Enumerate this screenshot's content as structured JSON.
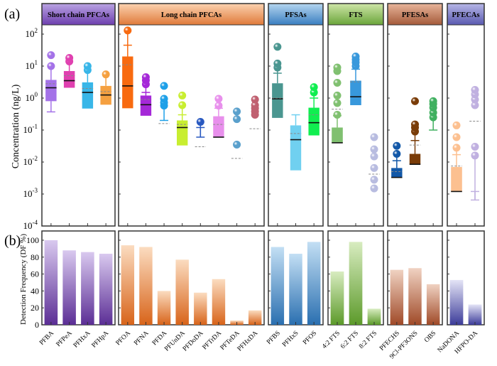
{
  "panel_labels": {
    "a": "(a)",
    "b": "(b)"
  },
  "chart_data": [
    {
      "type": "box",
      "panel": "(a)",
      "ylabel": "Concentration (ng/L)",
      "yscale": "log",
      "ylim": [
        0.0001,
        200
      ],
      "yticks": [
        {
          "value": 100,
          "base": "10",
          "exp": "2"
        },
        {
          "value": 10,
          "base": "10",
          "exp": "1"
        },
        {
          "value": 1,
          "base": "10",
          "exp": "0"
        },
        {
          "value": 0.1,
          "base": "10",
          "exp": "-1"
        },
        {
          "value": 0.01,
          "base": "10",
          "exp": "-2"
        },
        {
          "value": 0.001,
          "base": "10",
          "exp": "-3"
        },
        {
          "value": 0.0001,
          "base": "10",
          "exp": "-4"
        }
      ],
      "groups": [
        {
          "name": "Short chain PFCAs",
          "header_color": [
            "#b9a3e3",
            "#6d3fae"
          ],
          "compounds": [
            {
              "name": "PFBA",
              "color": "#a472e8",
              "q1": 0.8,
              "median": 2.1,
              "q3": 3.7,
              "mean": 2.8,
              "whisker_low": 0.37,
              "whisker_high": null,
              "outliers": [
                10,
                22
              ]
            },
            {
              "name": "PFPeA",
              "color": "#e040b0",
              "q1": 2.1,
              "median": 3.5,
              "q3": 7.0,
              "mean": 5.0,
              "whisker_low": null,
              "whisker_high": null,
              "outliers": [
                14,
                18
              ]
            },
            {
              "name": "PFHxA",
              "color": "#38b6e8",
              "q1": 0.47,
              "median": 1.5,
              "q3": 3.1,
              "mean": 2.0,
              "whisker_low": null,
              "whisker_high": null,
              "outliers": [
                7.5,
                10
              ]
            },
            {
              "name": "PFHpA",
              "color": "#f5a040",
              "q1": 0.62,
              "median": 1.25,
              "q3": 2.4,
              "mean": 1.6,
              "whisker_low": null,
              "whisker_high": null,
              "outliers": [
                5.5
              ]
            }
          ]
        },
        {
          "name": "Long chain PFCAs",
          "header_color": [
            "#fbd2b0",
            "#e07a3a"
          ],
          "compounds": [
            {
              "name": "PFOA",
              "color": "#f86a10",
              "q1": 0.48,
              "median": 2.4,
              "q3": 20,
              "mean": 11,
              "whisker_low": null,
              "whisker_high": 45,
              "outliers": [
                130
              ]
            },
            {
              "name": "PFNA",
              "color": "#a528d8",
              "q1": 0.28,
              "median": 0.62,
              "q3": 1.2,
              "mean": 0.9,
              "whisker_low": null,
              "whisker_high": 1.5,
              "outliers": [
                2.7,
                3.6,
                4.5
              ]
            },
            {
              "name": "PFDA",
              "color": "#1ea0e8",
              "q1": null,
              "median": null,
              "q3": null,
              "mean": 0.16,
              "whisker_low": null,
              "whisker_high": 0.2,
              "outliers": [
                0.58,
                0.72,
                0.95,
                2.4
              ]
            },
            {
              "name": "PFUnDA",
              "color": "#c8ee30",
              "q1": 0.033,
              "median": 0.12,
              "q3": 0.2,
              "mean": 0.15,
              "whisker_low": null,
              "whisker_high": 0.3,
              "outliers": [
                0.6,
                1.2
              ]
            },
            {
              "name": "PFDoDA",
              "color": "#2858c0",
              "q1": null,
              "median": null,
              "q3": null,
              "mean": 0.03,
              "whisker_low": 0.06,
              "whisker_high": 0.12,
              "outliers": [
                0.18
              ]
            },
            {
              "name": "PFTrDA",
              "color": "#e890ec",
              "q1": 0.06,
              "median": 0.06,
              "q3": 0.27,
              "mean": 0.15,
              "whisker_low": null,
              "whisker_high": 0.48,
              "outliers": [
                0.58,
                0.95
              ]
            },
            {
              "name": "PFTeDA",
              "color": "#5aa0cc",
              "q1": null,
              "median": null,
              "q3": null,
              "mean": 0.013,
              "whisker_low": null,
              "whisker_high": null,
              "outliers": [
                0.035,
                0.22,
                0.38
              ]
            },
            {
              "name": "PFHxDA",
              "color": "#c06070",
              "q1": null,
              "median": null,
              "q3": null,
              "mean": 0.11,
              "whisker_low": null,
              "whisker_high": null,
              "outliers": [
                0.3,
                0.38,
                0.48,
                0.6,
                0.9
              ]
            }
          ]
        },
        {
          "name": "PFSAs",
          "header_color": [
            "#b5d6f0",
            "#3a7ec0"
          ],
          "compounds": [
            {
              "name": "PFBS",
              "color": "#4a9690",
              "q1": 0.24,
              "median": 0.95,
              "q3": 2.9,
              "mean": 1.0,
              "whisker_low": null,
              "whisker_high": 6,
              "outliers": [
                9,
                12,
                40
              ]
            },
            {
              "name": "PFHxS",
              "color": "#70d0f0",
              "q1": 0.0055,
              "median": 0.05,
              "q3": 0.14,
              "mean": 0.078,
              "whisker_low": null,
              "whisker_high": 0.3,
              "outliers": []
            },
            {
              "name": "PFOS",
              "color": "#10ee50",
              "q1": 0.068,
              "median": 0.17,
              "q3": 0.5,
              "mean": 0.3,
              "whisker_low": null,
              "whisker_high": 1.0,
              "outliers": [
                1.5,
                2.2
              ]
            }
          ]
        },
        {
          "name": "FTS",
          "header_color": [
            "#cfe6a8",
            "#6aa53a"
          ],
          "compounds": [
            {
              "name": "4:2 FTS",
              "color": "#80c070",
              "q1": 0.04,
              "median": 0.04,
              "q3": 0.12,
              "mean": 0.45,
              "whisker_low": null,
              "whisker_high": 0.28,
              "outliers": [
                0.3,
                0.7,
                1.2,
                3.0,
                7.0,
                9.0
              ]
            },
            {
              "name": "6:2 FTS",
              "color": "#3898dc",
              "q1": 0.6,
              "median": 1.1,
              "q3": 3.5,
              "mean": 3.2,
              "whisker_low": null,
              "whisker_high": 8,
              "outliers": [
                10,
                13,
                16,
                20
              ]
            },
            {
              "name": "8:2 FTS",
              "color": "#b8bce0",
              "q1": null,
              "median": null,
              "q3": null,
              "mean": 0.0042,
              "whisker_low": null,
              "whisker_high": null,
              "outliers": [
                0.0015,
                0.0028,
                0.0065,
                0.015,
                0.025,
                0.06
              ]
            }
          ]
        },
        {
          "name": "PFESAs",
          "header_color": [
            "#e8b49a",
            "#a45a3a"
          ],
          "compounds": [
            {
              "name": "PFECHS",
              "color": "#1258a8",
              "q1": 0.0033,
              "median": 0.0033,
              "q3": 0.0065,
              "mean": 0.005,
              "whisker_low": null,
              "whisker_high": 0.011,
              "outliers": [
                0.018,
                0.032
              ]
            },
            {
              "name": "9Cl-PF3ONS",
              "color": "#7a3c08",
              "q1": 0.0085,
              "median": 0.0085,
              "q3": 0.018,
              "mean": 0.034,
              "whisker_low": null,
              "whisker_high": 0.047,
              "outliers": [
                0.09,
                0.12,
                0.15,
                0.8
              ]
            },
            {
              "name": "OBS",
              "color": "#40b060",
              "q1": null,
              "median": null,
              "q3": null,
              "mean": null,
              "whisker_low": 0.1,
              "whisker_high": null,
              "outliers": [
                0.25,
                0.35,
                0.5,
                0.65,
                0.8
              ]
            }
          ]
        },
        {
          "name": "PFECAs",
          "header_color": [
            "#b6b6e6",
            "#5a5ab0"
          ],
          "compounds": [
            {
              "name": "NaDONA",
              "color": "#fcc090",
              "q1": 0.0012,
              "median": 0.0012,
              "q3": 0.007,
              "mean": 0.0075,
              "whisker_low": null,
              "whisker_high": 0.017,
              "outliers": [
                0.028,
                0.06,
                0.14
              ]
            },
            {
              "name": "HFPO-DA",
              "color": "#c0b0e0",
              "q1": null,
              "median": null,
              "q3": null,
              "mean": 0.19,
              "whisker_low": 0.00065,
              "whisker_high": 0.0012,
              "outliers": [
                0.016,
                0.03,
                0.6,
                0.9,
                1.3,
                1.8
              ]
            }
          ]
        }
      ]
    },
    {
      "type": "bar",
      "panel": "(b)",
      "ylabel": "Detection Frequency (DF %)",
      "ylim": [
        0,
        110
      ],
      "yticks": [
        0,
        20,
        40,
        60,
        80,
        100
      ],
      "groups": [
        {
          "name": "Short chain PFCAs",
          "color": [
            "#d9c9ef",
            "#5b2e95"
          ],
          "categories": [
            "PFBA",
            "PFPeA",
            "PFHxA",
            "PFHpA"
          ],
          "values": [
            100,
            88,
            86,
            84
          ]
        },
        {
          "name": "Long chain PFCAs",
          "color": [
            "#fbdcc0",
            "#d8641a"
          ],
          "categories": [
            "PFOA",
            "PFNA",
            "PFDA",
            "PFUnDA",
            "PFDoDA",
            "PFTrDA",
            "PFTeDA",
            "PFHxDA"
          ],
          "values": [
            94,
            92,
            40,
            77,
            38,
            54,
            5,
            17
          ]
        },
        {
          "name": "PFSAs",
          "color": [
            "#c3dff4",
            "#2a6fb0"
          ],
          "categories": [
            "PFBS",
            "PFHxS",
            "PFOS"
          ],
          "values": [
            92,
            84,
            98
          ]
        },
        {
          "name": "FTS",
          "color": [
            "#d8ecc0",
            "#5c9a2a"
          ],
          "categories": [
            "4:2 FTS",
            "6:2 FTS",
            "8:2 FTS"
          ],
          "values": [
            63,
            98,
            19
          ]
        },
        {
          "name": "PFESAs",
          "color": [
            "#f0d2c2",
            "#a04a28"
          ],
          "categories": [
            "PFECHS",
            "9Cl-PF3ONS",
            "OBS"
          ],
          "values": [
            65,
            67,
            48
          ]
        },
        {
          "name": "PFECAs",
          "color": [
            "#e4e4f6",
            "#3c3c9a"
          ],
          "categories": [
            "NaDONA",
            "HFPO-DA"
          ],
          "values": [
            53,
            24
          ]
        }
      ]
    }
  ]
}
